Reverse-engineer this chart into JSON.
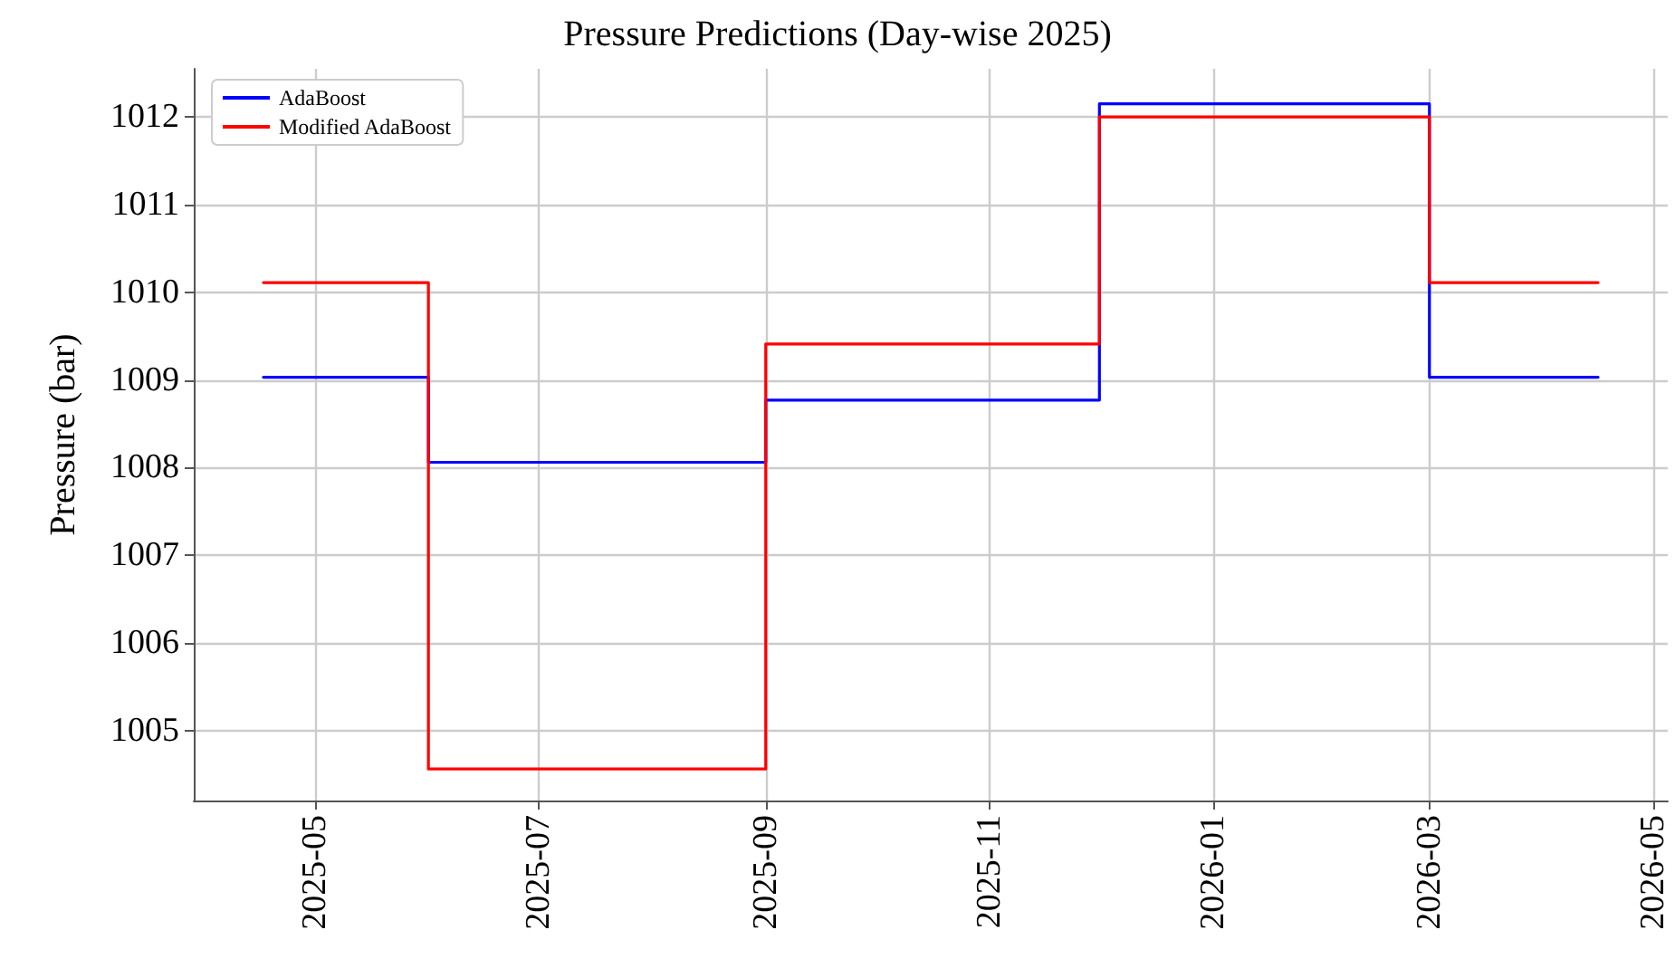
{
  "chart_data": {
    "type": "step",
    "title": "Pressure Predictions (Day-wise 2025)",
    "ylabel": "Pressure (bar)",
    "x": [
      "2025-04-17",
      "2025-06-01",
      "2025-09-01",
      "2025-12-01",
      "2026-03-01",
      "2026-04-16"
    ],
    "series": [
      {
        "name": "AdaBoost",
        "color": "#0000ff",
        "values": [
          1009.03,
          1008.06,
          1008.77,
          1012.15,
          1009.03,
          1009.03
        ]
      },
      {
        "name": "Modified AdaBoost",
        "color": "#ff0000",
        "values": [
          1010.11,
          1004.56,
          1009.41,
          1012.0,
          1010.11,
          1010.11
        ]
      }
    ],
    "xlim": [
      "2025-03-29",
      "2026-05-05"
    ],
    "xticks": [
      {
        "value": "2025-05-01",
        "label": "2025-05"
      },
      {
        "value": "2025-07-01",
        "label": "2025-07"
      },
      {
        "value": "2025-09-01",
        "label": "2025-09"
      },
      {
        "value": "2025-11-01",
        "label": "2025-11"
      },
      {
        "value": "2026-01-01",
        "label": "2026-01"
      },
      {
        "value": "2026-03-01",
        "label": "2026-03"
      },
      {
        "value": "2026-05-01",
        "label": "2026-05"
      }
    ],
    "ylim": [
      1004.2,
      1012.55
    ],
    "yticks": [
      1005,
      1006,
      1007,
      1008,
      1009,
      1010,
      1011,
      1012
    ],
    "grid": true,
    "legend": "top left",
    "marker": "none",
    "line_style": "solid"
  }
}
